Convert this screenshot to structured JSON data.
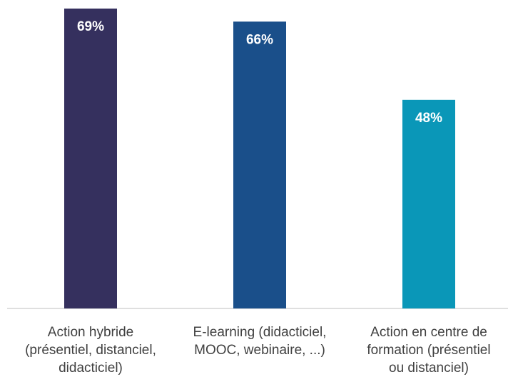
{
  "chart_data": {
    "type": "bar",
    "categories": [
      [
        "Action hybride",
        "(présentiel, distanciel,",
        "didacticiel)"
      ],
      [
        "E-learning (didacticiel,",
        "MOOC, webinaire, ...)"
      ],
      [
        "Action en centre de",
        "formation (présentiel",
        "ou distanciel)"
      ]
    ],
    "values": [
      69,
      66,
      48
    ],
    "value_labels": [
      "69%",
      "66%",
      "48%"
    ],
    "colors": [
      "#35305e",
      "#1a4f8a",
      "#0a97b8"
    ],
    "ylim": [
      0,
      69
    ],
    "grid": false,
    "legend": "none",
    "axis_color": "#bfbfbf"
  }
}
